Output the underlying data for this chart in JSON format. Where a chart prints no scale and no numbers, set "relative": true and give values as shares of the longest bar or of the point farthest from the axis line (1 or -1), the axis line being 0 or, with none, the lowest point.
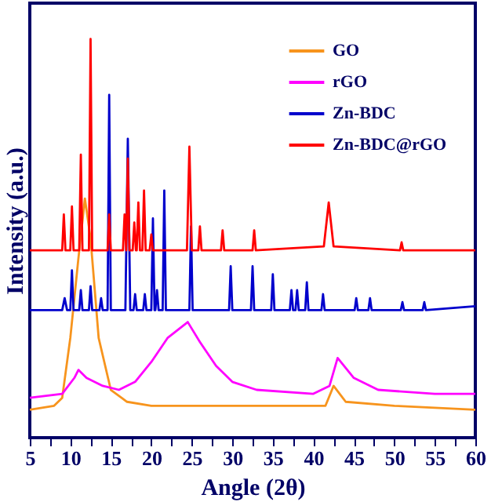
{
  "chart_data": {
    "type": "line",
    "relative": true,
    "xlabel": "Angle (2θ)",
    "ylabel": "Intensity (a.u.)",
    "xlim": [
      5,
      60
    ],
    "xticks": [
      5,
      {
        "value": 7.5,
        "label": null
      },
      10,
      {
        "value": 12.5,
        "label": null
      },
      15,
      {
        "value": 17.5,
        "label": null
      },
      20,
      {
        "value": 22.5,
        "label": null
      },
      25,
      {
        "value": 27.5,
        "label": null
      },
      30,
      {
        "value": 32.5,
        "label": null
      },
      35,
      {
        "value": 37.5,
        "label": null
      },
      40,
      {
        "value": 42.5,
        "label": null
      },
      45,
      {
        "value": 47.5,
        "label": null
      },
      50,
      {
        "value": 52.5,
        "label": null
      },
      55,
      {
        "value": 57.5,
        "label": null
      },
      60
    ],
    "tick_labels": "x",
    "grid": false,
    "legend": "top right",
    "marker": "none",
    "line_style": "solid",
    "series": [
      {
        "name": "GO",
        "color": "#f7941d",
        "x": [
          5,
          8,
          9,
          10,
          11,
          11.8,
          12.5,
          13.5,
          15,
          17,
          20,
          30,
          41.5,
          42.5,
          44,
          50,
          60
        ],
        "values": [
          0.07,
          0.08,
          0.1,
          0.25,
          0.45,
          0.6,
          0.5,
          0.25,
          0.12,
          0.09,
          0.08,
          0.08,
          0.08,
          0.13,
          0.09,
          0.08,
          0.07
        ]
      },
      {
        "name": "rGO",
        "color": "#ff00ff",
        "x": [
          5,
          9,
          10.5,
          11,
          12,
          14,
          16,
          18,
          20,
          22,
          24.5,
          26,
          28,
          30,
          33,
          40,
          42,
          43,
          45,
          48,
          55,
          60
        ],
        "values": [
          0.1,
          0.11,
          0.15,
          0.17,
          0.15,
          0.13,
          0.12,
          0.14,
          0.19,
          0.25,
          0.29,
          0.24,
          0.18,
          0.14,
          0.12,
          0.11,
          0.13,
          0.2,
          0.15,
          0.12,
          0.11,
          0.11
        ]
      },
      {
        "name": "Zn-BDC",
        "color": "#0000cc",
        "x": [
          5,
          9,
          9.3,
          9.6,
          10,
          10.2,
          10.4,
          11.1,
          11.3,
          11.5,
          12.3,
          12.5,
          12.7,
          13.6,
          13.8,
          14,
          14.6,
          14.8,
          15,
          16.8,
          17.1,
          17.4,
          17.8,
          18,
          18.2,
          19,
          19.2,
          19.4,
          20,
          20.2,
          20.4,
          20.5,
          20.7,
          20.9,
          21.4,
          21.6,
          21.8,
          24.7,
          24.9,
          25.1,
          29.6,
          29.8,
          30,
          32.3,
          32.5,
          32.7,
          34.8,
          35,
          35.2,
          37.1,
          37.3,
          37.5,
          37.8,
          38,
          38.2,
          39,
          39.2,
          39.4,
          41,
          41.2,
          41.4,
          45.1,
          45.3,
          45.5,
          46.8,
          47,
          47.2,
          50.8,
          51,
          51.2,
          53.5,
          53.7,
          53.9,
          60
        ],
        "values": [
          0.32,
          0.32,
          0.35,
          0.32,
          0.32,
          0.42,
          0.32,
          0.32,
          0.37,
          0.32,
          0.32,
          0.38,
          0.32,
          0.32,
          0.35,
          0.32,
          0.32,
          0.86,
          0.32,
          0.32,
          0.75,
          0.32,
          0.32,
          0.36,
          0.32,
          0.32,
          0.36,
          0.32,
          0.32,
          0.55,
          0.32,
          0.32,
          0.37,
          0.32,
          0.32,
          0.62,
          0.32,
          0.32,
          0.53,
          0.32,
          0.32,
          0.43,
          0.32,
          0.32,
          0.43,
          0.32,
          0.32,
          0.41,
          0.32,
          0.32,
          0.37,
          0.32,
          0.32,
          0.37,
          0.32,
          0.32,
          0.39,
          0.32,
          0.32,
          0.36,
          0.32,
          0.32,
          0.35,
          0.32,
          0.32,
          0.35,
          0.32,
          0.32,
          0.34,
          0.32,
          0.32,
          0.34,
          0.32,
          0.33
        ]
      },
      {
        "name": "Zn-BDC@rGO",
        "color": "#ff0000",
        "x": [
          5,
          9,
          9.2,
          9.4,
          10,
          10.2,
          10.4,
          11.1,
          11.3,
          11.5,
          12.3,
          12.5,
          12.7,
          14.6,
          14.8,
          15,
          16.5,
          16.7,
          16.9,
          17.1,
          17.3,
          17.7,
          17.9,
          18.1,
          18.2,
          18.4,
          18.6,
          18.9,
          19.1,
          19.3,
          19.8,
          20,
          20.2,
          24.4,
          24.7,
          25,
          25.8,
          26,
          26.2,
          28.6,
          28.8,
          29,
          32.5,
          32.7,
          32.9,
          41.3,
          41.9,
          42.5,
          50.7,
          50.9,
          51.1,
          60
        ],
        "values": [
          0.47,
          0.47,
          0.56,
          0.47,
          0.47,
          0.58,
          0.47,
          0.47,
          0.71,
          0.47,
          0.47,
          1,
          0.47,
          0.47,
          0.56,
          0.47,
          0.47,
          0.56,
          0.47,
          0.7,
          0.47,
          0.47,
          0.54,
          0.47,
          0.47,
          0.59,
          0.47,
          0.47,
          0.62,
          0.47,
          0.47,
          0.51,
          0.47,
          0.47,
          0.73,
          0.47,
          0.47,
          0.53,
          0.47,
          0.47,
          0.52,
          0.47,
          0.47,
          0.52,
          0.47,
          0.48,
          0.59,
          0.48,
          0.47,
          0.49,
          0.47,
          0.47
        ]
      }
    ]
  }
}
